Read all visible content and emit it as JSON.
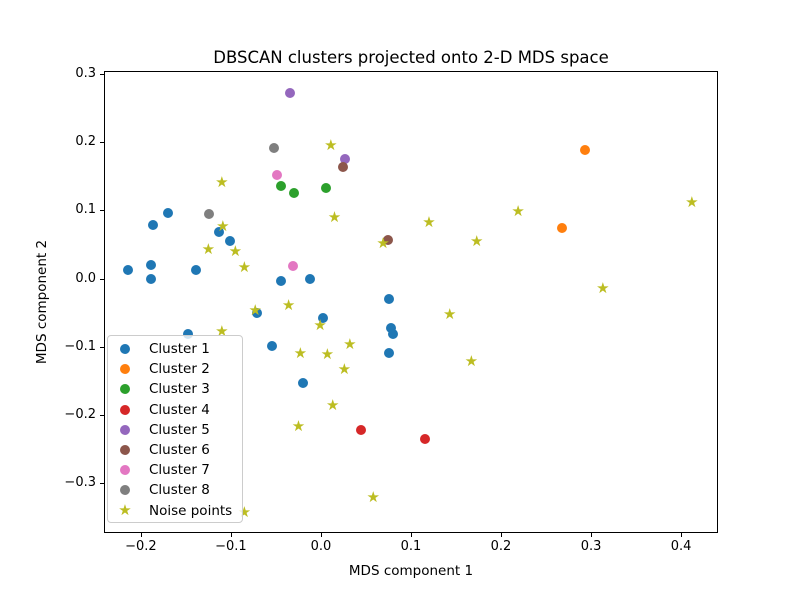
{
  "chart_data": {
    "type": "scatter",
    "title": "DBSCAN clusters projected onto 2-D MDS space",
    "xlabel": "MDS component 1",
    "ylabel": "MDS component 2",
    "xlim": [
      -0.241,
      0.441
    ],
    "ylim": [
      -0.373,
      0.304
    ],
    "grid": false,
    "legend_position": "lower-left",
    "x_ticks": {
      "values": [
        -0.2,
        -0.1,
        0.0,
        0.1,
        0.2,
        0.3,
        0.4
      ],
      "labels": [
        "−0.2",
        "−0.1",
        "0.0",
        "0.1",
        "0.2",
        "0.3",
        "0.4"
      ]
    },
    "y_ticks": {
      "values": [
        0.3,
        0.2,
        0.1,
        0.0,
        -0.1,
        -0.2,
        -0.3
      ],
      "labels": [
        "0.3",
        "0.2",
        "0.1",
        "0.0",
        "−0.1",
        "−0.2",
        "−0.3"
      ]
    },
    "star_glyph": "★",
    "series": [
      {
        "name": "Cluster 1",
        "color": "#1f77b4",
        "marker": "circle",
        "points": [
          [
            -0.17,
            0.096
          ],
          [
            -0.187,
            0.078
          ],
          [
            -0.113,
            0.068
          ],
          [
            -0.101,
            0.055
          ],
          [
            -0.214,
            0.013
          ],
          [
            -0.189,
            0.02
          ],
          [
            -0.189,
            0.0
          ],
          [
            -0.139,
            0.012
          ],
          [
            -0.044,
            -0.003
          ],
          [
            -0.012,
            0.0
          ],
          [
            0.075,
            -0.03
          ],
          [
            0.078,
            -0.072
          ],
          [
            0.08,
            -0.082
          ],
          [
            0.076,
            -0.109
          ],
          [
            -0.071,
            -0.05
          ],
          [
            0.002,
            -0.058
          ],
          [
            -0.148,
            -0.081
          ],
          [
            -0.055,
            -0.099
          ],
          [
            -0.02,
            -0.153
          ]
        ]
      },
      {
        "name": "Cluster 2",
        "color": "#ff7f0e",
        "marker": "circle",
        "points": [
          [
            0.293,
            0.188
          ],
          [
            0.268,
            0.074
          ]
        ]
      },
      {
        "name": "Cluster 3",
        "color": "#2ca02c",
        "marker": "circle",
        "points": [
          [
            -0.045,
            0.135
          ],
          [
            -0.03,
            0.125
          ],
          [
            0.006,
            0.133
          ]
        ]
      },
      {
        "name": "Cluster 4",
        "color": "#d62728",
        "marker": "circle",
        "points": [
          [
            0.044,
            -0.222
          ],
          [
            0.116,
            -0.235
          ]
        ]
      },
      {
        "name": "Cluster 5",
        "color": "#9467bd",
        "marker": "circle",
        "points": [
          [
            -0.034,
            0.272
          ],
          [
            0.027,
            0.175
          ]
        ]
      },
      {
        "name": "Cluster 6",
        "color": "#8c564b",
        "marker": "circle",
        "points": [
          [
            0.024,
            0.164
          ],
          [
            0.074,
            0.057
          ]
        ]
      },
      {
        "name": "Cluster 7",
        "color": "#e377c2",
        "marker": "circle",
        "points": [
          [
            -0.049,
            0.151
          ],
          [
            -0.031,
            0.019
          ]
        ]
      },
      {
        "name": "Cluster 8",
        "color": "#7f7f7f",
        "marker": "circle",
        "points": [
          [
            -0.052,
            0.191
          ],
          [
            -0.124,
            0.094
          ]
        ]
      },
      {
        "name": "Noise points",
        "color": "#bcbd22",
        "marker": "star",
        "points": [
          [
            0.011,
            0.194
          ],
          [
            -0.11,
            0.14
          ],
          [
            0.015,
            0.088
          ],
          [
            -0.109,
            0.076
          ],
          [
            0.069,
            0.051
          ],
          [
            -0.125,
            0.042
          ],
          [
            -0.095,
            0.039
          ],
          [
            -0.085,
            0.016
          ],
          [
            0.412,
            0.11
          ],
          [
            0.219,
            0.097
          ],
          [
            0.12,
            0.082
          ],
          [
            0.173,
            0.054
          ],
          [
            -0.073,
            -0.048
          ],
          [
            -0.036,
            -0.04
          ],
          [
            -0.001,
            -0.069
          ],
          [
            -0.11,
            -0.079
          ],
          [
            -0.023,
            -0.11
          ],
          [
            0.007,
            -0.112
          ],
          [
            0.032,
            -0.098
          ],
          [
            0.026,
            -0.134
          ],
          [
            0.013,
            -0.187
          ],
          [
            -0.025,
            -0.218
          ],
          [
            0.058,
            -0.321
          ],
          [
            -0.085,
            -0.343
          ],
          [
            0.313,
            -0.016
          ],
          [
            0.143,
            -0.053
          ],
          [
            0.167,
            -0.123
          ]
        ]
      }
    ]
  }
}
